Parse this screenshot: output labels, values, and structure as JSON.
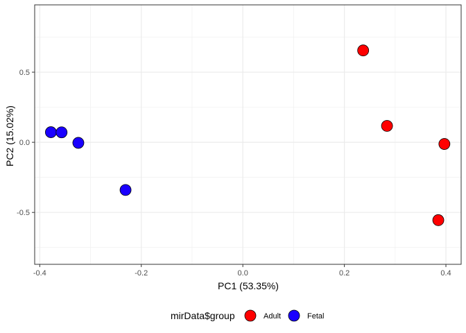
{
  "chart_data": {
    "type": "scatter",
    "xlabel": "PC1 (53.35%)",
    "ylabel": "PC2 (15.02%)",
    "xlim": [
      -0.41,
      0.43
    ],
    "ylim": [
      -0.87,
      0.98
    ],
    "x_ticks": [
      -0.4,
      -0.2,
      0.0,
      0.2,
      0.4
    ],
    "x_tick_labels": [
      "-0.4",
      "-0.2",
      "0.0",
      "0.2",
      "0.4"
    ],
    "y_ticks": [
      -0.5,
      0.0,
      0.5
    ],
    "y_tick_labels": [
      "-0.5",
      "0.0",
      "0.5"
    ],
    "grid": true,
    "legend": {
      "title": "mirData$group",
      "position": "bottom",
      "items": [
        "Adult",
        "Fetal"
      ]
    },
    "series": [
      {
        "name": "Adult",
        "color": "#ff0000",
        "points": [
          {
            "x": 0.237,
            "y": 0.655
          },
          {
            "x": 0.284,
            "y": 0.117
          },
          {
            "x": 0.397,
            "y": -0.012
          },
          {
            "x": 0.385,
            "y": -0.555
          }
        ]
      },
      {
        "name": "Fetal",
        "color": "#1a00ff",
        "points": [
          {
            "x": -0.378,
            "y": 0.072
          },
          {
            "x": -0.357,
            "y": 0.071
          },
          {
            "x": -0.324,
            "y": -0.004
          },
          {
            "x": -0.231,
            "y": -0.34
          }
        ]
      }
    ]
  }
}
